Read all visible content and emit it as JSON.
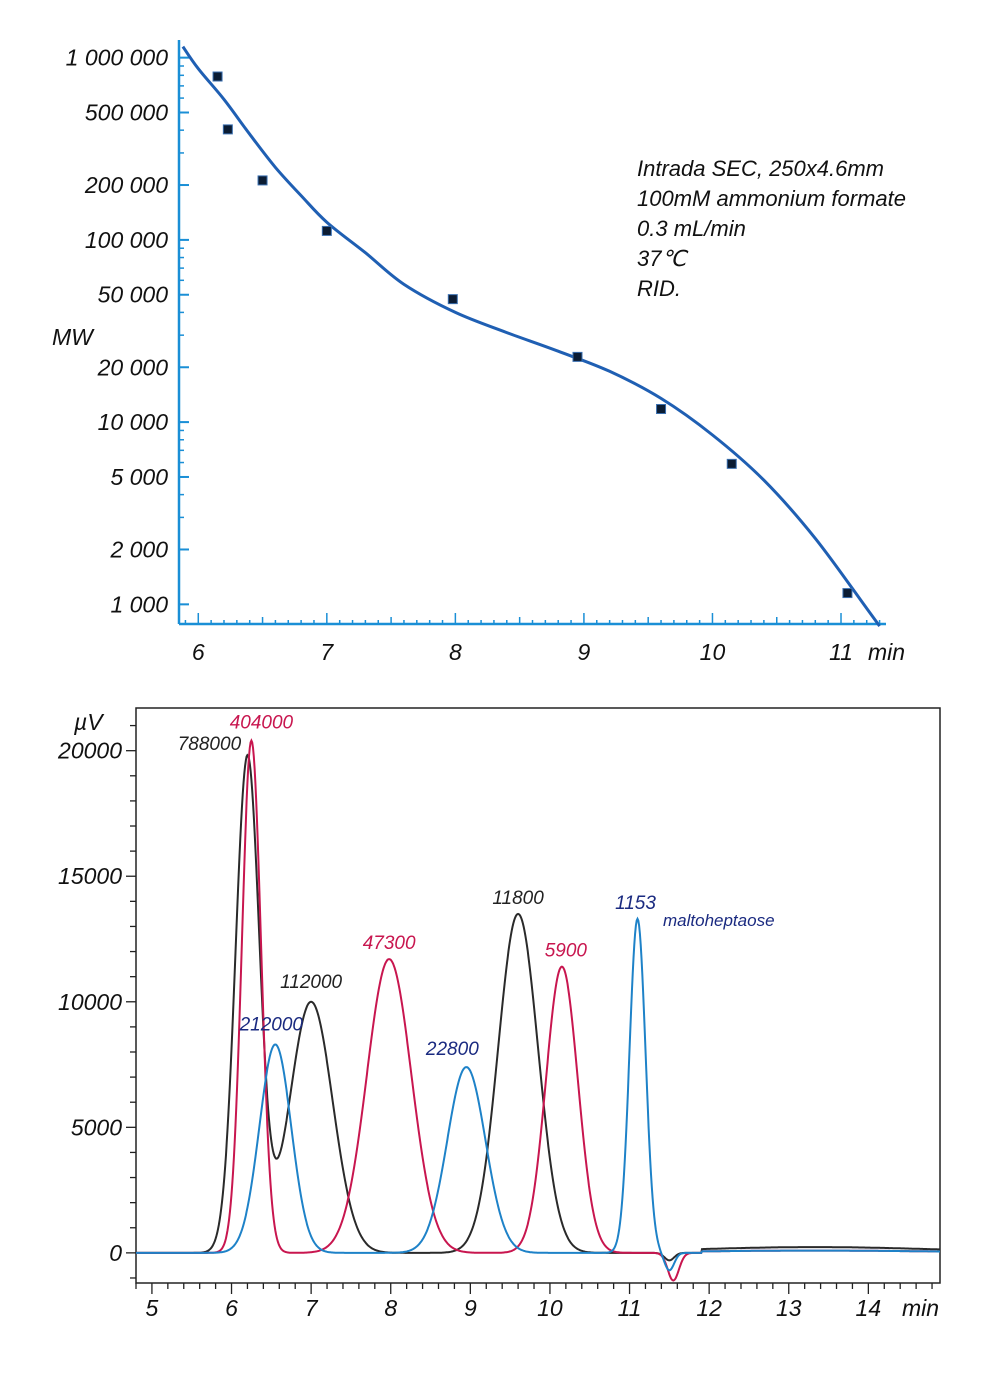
{
  "colors": {
    "axis": "#1a8fd6",
    "calibration_curve": "#1f5fb3",
    "black_trace": "#2a2a2a",
    "magenta_trace": "#c8164f",
    "blue_trace": "#1e82c8",
    "navy_label": "#1a2a80"
  },
  "chart_data": [
    {
      "type": "scatter",
      "title": "",
      "xlabel": "min",
      "ylabel": "MW",
      "yscale": "log",
      "xlim": [
        5.85,
        11.35
      ],
      "ylim": [
        780,
        1250000
      ],
      "x_ticks": [
        6,
        7,
        8,
        9,
        10,
        11
      ],
      "x_tick_labels": [
        "6",
        "7",
        "8",
        "9",
        "10",
        "11"
      ],
      "y_ticks": [
        1000000,
        500000,
        200000,
        100000,
        50000,
        20000,
        10000,
        5000,
        2000,
        1000
      ],
      "y_tick_labels": [
        "1 000 000",
        "500 000",
        "200 000",
        "100 000",
        "50 000",
        "20 000",
        "10 000",
        "5 000",
        "2 000",
        "1 000"
      ],
      "annotation_lines": [
        "Intrada SEC, 250x4.6mm",
        "100mM ammonium formate",
        "0.3 mL/min",
        "37℃",
        "RID."
      ],
      "series": [
        {
          "kind": "points",
          "points": [
            {
              "x": 6.15,
              "y": 788000
            },
            {
              "x": 6.23,
              "y": 404000
            },
            {
              "x": 6.5,
              "y": 212000
            },
            {
              "x": 7.0,
              "y": 112000
            },
            {
              "x": 7.98,
              "y": 47300
            },
            {
              "x": 8.95,
              "y": 22800
            },
            {
              "x": 9.6,
              "y": 11800
            },
            {
              "x": 10.15,
              "y": 5900
            },
            {
              "x": 11.05,
              "y": 1153
            }
          ]
        },
        {
          "kind": "fit-line",
          "points": [
            {
              "x": 5.88,
              "y": 1150000
            },
            {
              "x": 6.0,
              "y": 870000
            },
            {
              "x": 6.2,
              "y": 590000
            },
            {
              "x": 6.4,
              "y": 380000
            },
            {
              "x": 6.6,
              "y": 250000
            },
            {
              "x": 6.8,
              "y": 175000
            },
            {
              "x": 7.0,
              "y": 125000
            },
            {
              "x": 7.3,
              "y": 85000
            },
            {
              "x": 7.6,
              "y": 57000
            },
            {
              "x": 8.0,
              "y": 40000
            },
            {
              "x": 8.4,
              "y": 31000
            },
            {
              "x": 8.8,
              "y": 24500
            },
            {
              "x": 9.2,
              "y": 19000
            },
            {
              "x": 9.6,
              "y": 13500
            },
            {
              "x": 10.0,
              "y": 8500
            },
            {
              "x": 10.4,
              "y": 4800
            },
            {
              "x": 10.8,
              "y": 2300
            },
            {
              "x": 11.2,
              "y": 950
            },
            {
              "x": 11.3,
              "y": 760
            }
          ]
        }
      ]
    },
    {
      "type": "line",
      "title": "",
      "xlabel": "min",
      "ylabel": "µV",
      "xlim": [
        4.8,
        14.9
      ],
      "ylim": [
        -1200,
        21700
      ],
      "x_ticks": [
        5,
        6,
        7,
        8,
        9,
        10,
        11,
        12,
        13,
        14
      ],
      "x_tick_labels": [
        "5",
        "6",
        "7",
        "8",
        "9",
        "10",
        "11",
        "12",
        "13",
        "14"
      ],
      "y_ticks": [
        0,
        5000,
        10000,
        15000,
        20000
      ],
      "y_tick_labels": [
        "0",
        "5000",
        "10000",
        "15000",
        "20000"
      ],
      "series": [
        {
          "color_key": "black_trace",
          "peaks": [
            {
              "label": "788000",
              "t": 6.2,
              "h": 19700,
              "w": 0.15
            },
            {
              "label": "112000",
              "t": 7.0,
              "h": 10000,
              "w": 0.27
            },
            {
              "label": "11800",
              "t": 9.6,
              "h": 13500,
              "w": 0.25
            }
          ]
        },
        {
          "color_key": "magenta_trace",
          "peaks": [
            {
              "label": "404000",
              "t": 6.25,
              "h": 20400,
              "w": 0.12
            },
            {
              "label": "47300",
              "t": 7.98,
              "h": 11700,
              "w": 0.28
            },
            {
              "label": "5900",
              "t": 10.15,
              "h": 11400,
              "w": 0.2
            }
          ]
        },
        {
          "color_key": "blue_trace",
          "peaks": [
            {
              "label": "212000",
              "t": 6.55,
              "h": 8300,
              "w": 0.2
            },
            {
              "label": "22800",
              "t": 8.95,
              "h": 7400,
              "w": 0.24
            },
            {
              "label": "1153",
              "t": 11.1,
              "h": 13300,
              "w": 0.1
            }
          ]
        }
      ],
      "extra_label": "maltoheptaose"
    }
  ]
}
